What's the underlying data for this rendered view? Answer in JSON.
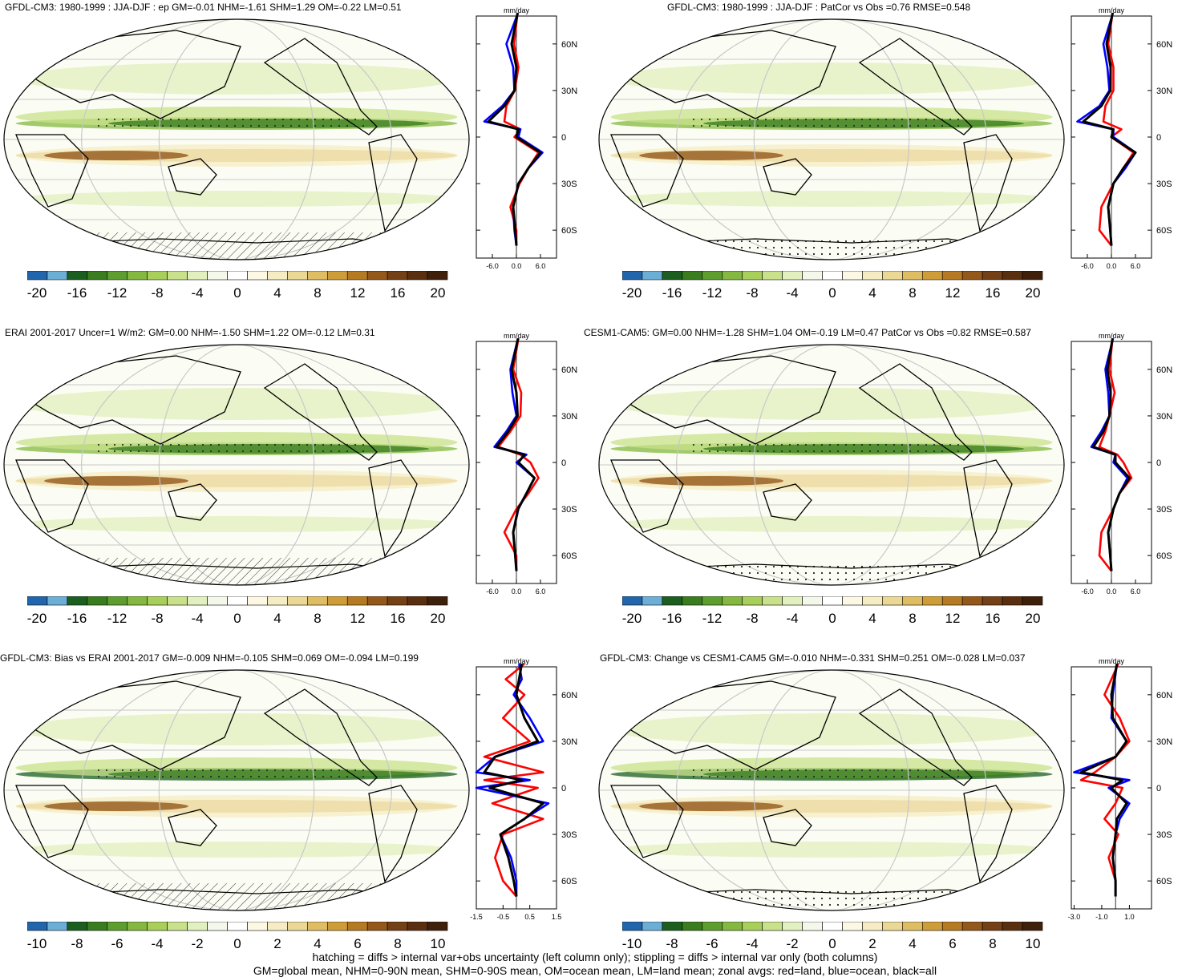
{
  "panels": [
    {
      "title": "GFDL-CM3: 1980-1999 : JJA-DJF : ep GM=-0.01 NHM=-1.61 SHM=1.29 OM=-0.22 LM=0.51",
      "zonal_unit": "mm/day",
      "zonal_xticks": [
        "-6.0",
        "0.0",
        "6.0"
      ],
      "lat_ticks": [
        "60N",
        "30N",
        "0",
        "30S",
        "60S"
      ],
      "colorbar_labels": [
        "-20",
        "-16",
        "-12",
        "-8",
        "-4",
        "0",
        "4",
        "8",
        "12",
        "16",
        "20"
      ]
    },
    {
      "title": "GFDL-CM3: 1980-1999 : JJA-DJF : PatCor vs Obs =0.76 RMSE=0.548",
      "zonal_unit": "mm/day",
      "zonal_xticks": [
        "-6.0",
        "0.0",
        "6.0"
      ],
      "lat_ticks": [
        "60N",
        "30N",
        "0",
        "30S",
        "60S"
      ],
      "colorbar_labels": [
        "-20",
        "-16",
        "-12",
        "-8",
        "-4",
        "0",
        "4",
        "8",
        "12",
        "16",
        "20"
      ]
    },
    {
      "title": "ERAI 2001-2017 Uncer=1 W/m2: GM=0.00 NHM=-1.50 SHM=1.22 OM=-0.12 LM=0.31",
      "zonal_unit": "mm/day",
      "zonal_xticks": [
        "-6.0",
        "0.0",
        "6.0"
      ],
      "lat_ticks": [
        "60N",
        "30N",
        "0",
        "30S",
        "60S"
      ],
      "colorbar_labels": [
        "-20",
        "-16",
        "-12",
        "-8",
        "-4",
        "0",
        "4",
        "8",
        "12",
        "16",
        "20"
      ]
    },
    {
      "title": "CESM1-CAM5: GM=0.00 NHM=-1.28 SHM=1.04 OM=-0.19 LM=0.47 PatCor vs Obs =0.82 RMSE=0.587",
      "zonal_unit": "mm/day",
      "zonal_xticks": [
        "-6.0",
        "0.0",
        "6.0"
      ],
      "lat_ticks": [
        "60N",
        "30N",
        "0",
        "30S",
        "60S"
      ],
      "colorbar_labels": [
        "-20",
        "-16",
        "-12",
        "-8",
        "-4",
        "0",
        "4",
        "8",
        "12",
        "16",
        "20"
      ]
    },
    {
      "title": "GFDL-CM3: Bias vs ERAI 2001-2017 GM=-0.009 NHM=-0.105 SHM=0.069 OM=-0.094 LM=0.199",
      "zonal_unit": "mm/day",
      "zonal_xticks": [
        "-1.5",
        "-0.5",
        "0.5",
        "1.5"
      ],
      "lat_ticks": [
        "60N",
        "30N",
        "0",
        "30S",
        "60S"
      ],
      "colorbar_labels": [
        "-10",
        "-8",
        "-6",
        "-4",
        "-2",
        "0",
        "2",
        "4",
        "6",
        "8",
        "10"
      ]
    },
    {
      "title": "GFDL-CM3: Change vs CESM1-CAM5 GM=-0.010 NHM=-0.331 SHM=0.251 OM=-0.028 LM=0.037",
      "zonal_unit": "mm/day",
      "zonal_xticks": [
        "-3.0",
        "-1.0",
        "1.0"
      ],
      "lat_ticks": [
        "60N",
        "30N",
        "0",
        "30S",
        "60S"
      ],
      "colorbar_labels": [
        "-10",
        "-8",
        "-6",
        "-4",
        "-2",
        "0",
        "2",
        "4",
        "6",
        "8",
        "10"
      ]
    }
  ],
  "colorbar_colors": [
    "#2166ac",
    "#6baed6",
    "#1b5e20",
    "#3a7d1f",
    "#5e9e2e",
    "#84b840",
    "#a8cf5a",
    "#c8e18a",
    "#e2efbf",
    "#f4f8ea",
    "#ffffff",
    "#fdf8e4",
    "#f6ecc4",
    "#ecd895",
    "#dfbd63",
    "#cf9d38",
    "#b57a22",
    "#93581a",
    "#744015",
    "#5a2f10",
    "#3f200b"
  ],
  "footer": {
    "line1": "hatching = diffs > internal var+obs uncertainty (left column only); stippling = diffs > internal var only (both columns)",
    "line2": "GM=global mean, NHM=0-90N mean, SHM=0-90S mean, OM=ocean mean, LM=land mean; zonal avgs: red=land, blue=ocean, black=all"
  },
  "chart_data": [
    {
      "type": "heatmap",
      "title": "GFDL-CM3: 1980-1999 : JJA-DJF : ep GM=-0.01 NHM=-1.61 SHM=1.29 OM=-0.22 LM=0.51",
      "colorbar_range": [
        -20,
        20
      ],
      "zonal_mean_series": [
        {
          "name": "land",
          "color": "#ff0000",
          "lat": [
            80,
            60,
            45,
            30,
            20,
            10,
            5,
            0,
            -10,
            -20,
            -30,
            -45,
            -60,
            -70
          ],
          "values": [
            0.3,
            -0.6,
            0.5,
            -0.4,
            -2.5,
            -3.0,
            1.0,
            -0.5,
            5.5,
            3.0,
            0.8,
            -1.5,
            0.0,
            0.0
          ]
        },
        {
          "name": "ocean",
          "color": "#0000ff",
          "lat": [
            80,
            60,
            45,
            30,
            20,
            10,
            5,
            0,
            -10,
            -20,
            -30,
            -45,
            -60,
            -70
          ],
          "values": [
            0.4,
            -2.5,
            -0.8,
            -0.5,
            -3.5,
            -8.0,
            1.0,
            0.5,
            6.5,
            3.0,
            0.5,
            -0.8,
            -0.5,
            0.0
          ]
        },
        {
          "name": "all",
          "color": "#000000",
          "lat": [
            80,
            60,
            45,
            30,
            20,
            10,
            5,
            0,
            -10,
            -20,
            -30,
            -45,
            -60,
            -70
          ],
          "values": [
            0.3,
            -1.2,
            0.0,
            -0.5,
            -3.0,
            -7.0,
            0.5,
            0.0,
            6.0,
            3.0,
            0.5,
            -0.8,
            -0.3,
            0.0
          ]
        }
      ]
    },
    {
      "type": "heatmap",
      "title": "GFDL-CM3: 1980-1999 : JJA-DJF : PatCor vs Obs =0.76 RMSE=0.548",
      "colorbar_range": [
        -20,
        20
      ],
      "zonal_mean_series": [
        {
          "name": "land",
          "color": "#ff0000",
          "lat": [
            80,
            60,
            45,
            30,
            20,
            10,
            5,
            0,
            -10,
            -20,
            -30,
            -45,
            -60,
            -70
          ],
          "values": [
            0.3,
            -0.8,
            0.5,
            0.5,
            -1.5,
            -2.0,
            2.5,
            0.0,
            5.5,
            3.0,
            0.5,
            -2.5,
            -3.0,
            0.0
          ]
        },
        {
          "name": "ocean",
          "color": "#0000ff",
          "lat": [
            80,
            60,
            45,
            30,
            20,
            10,
            5,
            0,
            -10,
            -20,
            -30,
            -45,
            -60,
            -70
          ],
          "values": [
            0.4,
            -2.0,
            -1.0,
            -0.5,
            -3.0,
            -8.5,
            0.5,
            0.5,
            6.0,
            3.5,
            0.5,
            -0.8,
            -0.3,
            0.0
          ]
        },
        {
          "name": "all",
          "color": "#000000",
          "lat": [
            80,
            60,
            45,
            30,
            20,
            10,
            5,
            0,
            -10,
            -20,
            -30,
            -45,
            -60,
            -70
          ],
          "values": [
            0.3,
            -1.2,
            -0.2,
            -0.3,
            -2.5,
            -7.0,
            0.5,
            0.0,
            6.0,
            3.0,
            0.5,
            -0.8,
            -0.3,
            0.0
          ]
        }
      ]
    },
    {
      "type": "heatmap",
      "title": "ERAI 2001-2017 Uncer=1 W/m2: GM=0.00 NHM=-1.50 SHM=1.22 OM=-0.12 LM=0.31",
      "colorbar_range": [
        -20,
        20
      ],
      "zonal_mean_series": [
        {
          "name": "land",
          "color": "#ff0000",
          "lat": [
            80,
            60,
            45,
            30,
            20,
            10,
            5,
            0,
            -10,
            -20,
            -30,
            -45,
            -60,
            -70
          ],
          "values": [
            0.5,
            -0.8,
            1.2,
            1.0,
            -1.5,
            -4.5,
            1.0,
            3.5,
            5.5,
            3.0,
            0.0,
            -3.0,
            0.0,
            0.0
          ]
        },
        {
          "name": "ocean",
          "color": "#0000ff",
          "lat": [
            80,
            60,
            45,
            30,
            20,
            10,
            5,
            0,
            -10,
            -20,
            -30,
            -45,
            -60,
            -70
          ],
          "values": [
            0.4,
            -1.5,
            -1.0,
            0.0,
            -2.5,
            -5.5,
            2.5,
            0.0,
            4.5,
            2.5,
            0.5,
            -0.8,
            -0.3,
            0.0
          ]
        },
        {
          "name": "all",
          "color": "#000000",
          "lat": [
            80,
            60,
            45,
            30,
            20,
            10,
            5,
            0,
            -10,
            -20,
            -30,
            -45,
            -60,
            -70
          ],
          "values": [
            0.4,
            -1.2,
            0.0,
            0.3,
            -2.0,
            -5.0,
            2.0,
            0.5,
            4.5,
            2.5,
            0.4,
            -0.8,
            -0.3,
            0.0
          ]
        }
      ]
    },
    {
      "type": "heatmap",
      "title": "CESM1-CAM5: GM=0.00 NHM=-1.28 SHM=1.04 OM=-0.19 LM=0.47 PatCor vs Obs =0.82 RMSE=0.587",
      "colorbar_range": [
        -20,
        20
      ],
      "zonal_mean_series": [
        {
          "name": "land",
          "color": "#ff0000",
          "lat": [
            80,
            60,
            45,
            30,
            20,
            10,
            5,
            0,
            -10,
            -20,
            -30,
            -45,
            -60,
            -70
          ],
          "values": [
            0.3,
            -0.5,
            0.8,
            -0.5,
            -1.5,
            -3.0,
            1.5,
            3.0,
            5.0,
            2.0,
            0.5,
            -2.5,
            -3.0,
            0.0
          ]
        },
        {
          "name": "ocean",
          "color": "#0000ff",
          "lat": [
            80,
            60,
            45,
            30,
            20,
            10,
            5,
            0,
            -10,
            -20,
            -30,
            -45,
            -60,
            -70
          ],
          "values": [
            0.4,
            -1.5,
            -0.8,
            -0.5,
            -2.5,
            -5.0,
            1.0,
            0.5,
            4.0,
            2.0,
            0.5,
            -0.8,
            -0.3,
            0.0
          ]
        },
        {
          "name": "all",
          "color": "#000000",
          "lat": [
            80,
            60,
            45,
            30,
            20,
            10,
            5,
            0,
            -10,
            -20,
            -30,
            -45,
            -60,
            -70
          ],
          "values": [
            0.3,
            -1.0,
            -0.2,
            -0.5,
            -2.0,
            -4.5,
            1.0,
            1.0,
            4.5,
            2.0,
            0.5,
            -0.8,
            -0.3,
            0.0
          ]
        }
      ]
    },
    {
      "type": "heatmap",
      "title": "GFDL-CM3: Bias vs ERAI 2001-2017 GM=-0.009 NHM=-0.105 SHM=0.069 OM=-0.094 LM=0.199",
      "colorbar_range": [
        -10,
        10
      ],
      "zonal_mean_series": [
        {
          "name": "land",
          "color": "#ff0000",
          "lat": [
            80,
            70,
            60,
            45,
            30,
            20,
            10,
            5,
            0,
            -10,
            -20,
            -30,
            -45,
            -60,
            -70
          ],
          "values": [
            0.3,
            -0.4,
            0.3,
            -0.5,
            0.5,
            -1.2,
            1.0,
            -1.2,
            0.8,
            -0.9,
            1.0,
            -0.5,
            -0.8,
            -0.5,
            0.0
          ]
        },
        {
          "name": "ocean",
          "color": "#0000ff",
          "lat": [
            80,
            70,
            60,
            45,
            30,
            20,
            10,
            5,
            0,
            -10,
            -20,
            -30,
            -45,
            -60,
            -70
          ],
          "values": [
            0.1,
            0.2,
            -0.1,
            0.5,
            1.0,
            -0.8,
            -1.5,
            0.5,
            -1.5,
            1.2,
            0.3,
            -0.6,
            -0.2,
            0.0,
            0.0
          ]
        },
        {
          "name": "all",
          "color": "#000000",
          "lat": [
            80,
            70,
            60,
            45,
            30,
            20,
            10,
            5,
            0,
            -10,
            -20,
            -30,
            -45,
            -60,
            -70
          ],
          "values": [
            0.2,
            0.1,
            0.0,
            0.3,
            0.8,
            -0.8,
            -1.2,
            0.2,
            -1.0,
            1.0,
            0.3,
            -0.6,
            -0.3,
            -0.1,
            0.0
          ]
        }
      ]
    },
    {
      "type": "heatmap",
      "title": "GFDL-CM3: Change vs CESM1-CAM5 GM=-0.010 NHM=-0.331 SHM=0.251 OM=-0.028 LM=0.037",
      "colorbar_range": [
        -10,
        10
      ],
      "zonal_mean_series": [
        {
          "name": "land",
          "color": "#ff0000",
          "lat": [
            80,
            60,
            45,
            30,
            20,
            10,
            5,
            0,
            -10,
            -20,
            -30,
            -45,
            -60,
            -70
          ],
          "values": [
            0.2,
            -0.8,
            0.3,
            1.0,
            0.0,
            -1.5,
            -2.5,
            0.5,
            0.0,
            -0.8,
            0.2,
            -0.5,
            0.0,
            0.0
          ]
        },
        {
          "name": "ocean",
          "color": "#0000ff",
          "lat": [
            80,
            60,
            45,
            30,
            20,
            10,
            5,
            0,
            -10,
            -20,
            -30,
            -45,
            -60,
            -70
          ],
          "values": [
            0.1,
            -0.2,
            -0.3,
            0.8,
            0.0,
            -3.0,
            1.0,
            -0.5,
            1.0,
            0.3,
            0.0,
            -0.2,
            0.0,
            0.0
          ]
        },
        {
          "name": "all",
          "color": "#000000",
          "lat": [
            80,
            60,
            45,
            30,
            20,
            10,
            5,
            0,
            -10,
            -20,
            -30,
            -45,
            -60,
            -70
          ],
          "values": [
            0.1,
            -0.3,
            -0.2,
            0.8,
            0.0,
            -2.5,
            0.5,
            -0.3,
            0.8,
            0.1,
            0.0,
            -0.2,
            0.0,
            0.0
          ]
        }
      ]
    }
  ]
}
